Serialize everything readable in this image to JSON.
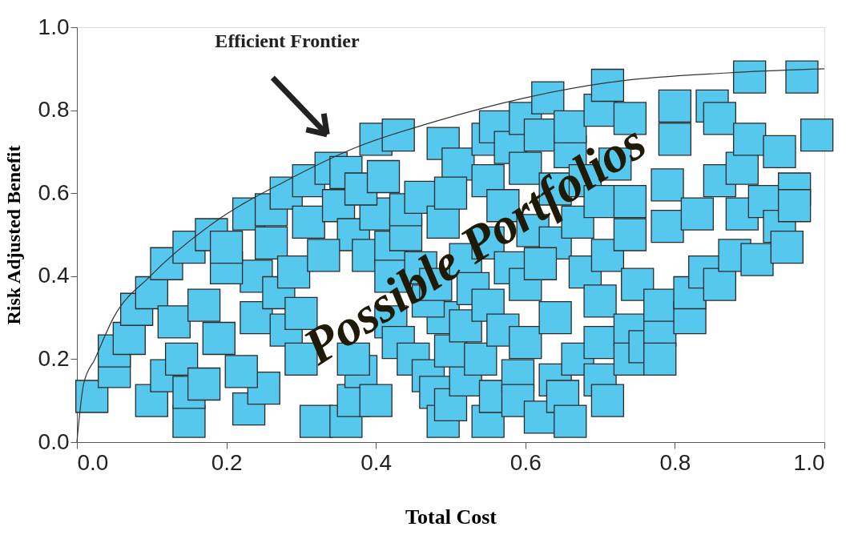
{
  "chart_data": {
    "type": "scatter",
    "xlabel": "Total Cost",
    "ylabel": "Risk Adjusted Benefit",
    "xlim": [
      0,
      1
    ],
    "ylim": [
      0,
      1
    ],
    "xticks": [
      {
        "value": 0,
        "label": "0.0"
      },
      0.2,
      0.4,
      0.6,
      0.8,
      {
        "value": 1,
        "label": "1.0"
      }
    ],
    "yticks": [
      {
        "value": 0,
        "label": "0.0"
      },
      0.2,
      0.4,
      0.6,
      0.8,
      {
        "value": 1,
        "label": "1.0"
      }
    ],
    "grid": false,
    "annotations": [
      "Efficient Frontier",
      "Possible Portfolios"
    ],
    "series": [
      {
        "type": "scatter",
        "color": "#56c8ee",
        "marker": "square",
        "x": [
          0.02,
          0.05,
          0.05,
          0.07,
          0.1,
          0.08,
          0.1,
          0.12,
          0.14,
          0.15,
          0.15,
          0.13,
          0.17,
          0.17,
          0.19,
          0.12,
          0.15,
          0.18,
          0.23,
          0.23,
          0.25,
          0.22,
          0.24,
          0.24,
          0.2,
          0.2,
          0.26,
          0.27,
          0.29,
          0.28,
          0.3,
          0.3,
          0.26,
          0.28,
          0.31,
          0.31,
          0.34,
          0.36,
          0.35,
          0.37,
          0.33,
          0.32,
          0.36,
          0.37,
          0.38,
          0.4,
          0.37,
          0.39,
          0.4,
          0.38,
          0.41,
          0.4,
          0.43,
          0.42,
          0.44,
          0.44,
          0.42,
          0.46,
          0.46,
          0.42,
          0.43,
          0.45,
          0.47,
          0.48,
          0.49,
          0.5,
          0.52,
          0.5,
          0.49,
          0.47,
          0.48,
          0.49,
          0.49,
          0.51,
          0.5,
          0.52,
          0.53,
          0.52,
          0.55,
          0.54,
          0.56,
          0.55,
          0.55,
          0.55,
          0.55,
          0.56,
          0.58,
          0.57,
          0.58,
          0.57,
          0.59,
          0.59,
          0.6,
          0.6,
          0.61,
          0.6,
          0.6,
          0.62,
          0.63,
          0.64,
          0.64,
          0.62,
          0.64,
          0.64,
          0.62,
          0.65,
          0.66,
          0.67,
          0.67,
          0.66,
          0.66,
          0.68,
          0.68,
          0.7,
          0.7,
          0.7,
          0.71,
          0.71,
          0.7,
          0.7,
          0.71,
          0.74,
          0.74,
          0.72,
          0.74,
          0.75,
          0.74,
          0.74,
          0.76,
          0.78,
          0.78,
          0.78,
          0.79,
          0.79,
          0.8,
          0.8,
          0.82,
          0.82,
          0.84,
          0.83,
          0.85,
          0.86,
          0.86,
          0.86,
          0.88,
          0.89,
          0.89,
          0.9,
          0.9,
          0.91,
          0.92,
          0.94,
          0.95,
          0.94,
          0.96,
          0.96,
          0.97,
          0.99
        ],
        "values": [
          0.11,
          0.17,
          0.22,
          0.25,
          0.1,
          0.32,
          0.36,
          0.16,
          0.2,
          0.05,
          0.12,
          0.29,
          0.33,
          0.14,
          0.25,
          0.43,
          0.47,
          0.5,
          0.55,
          0.08,
          0.13,
          0.17,
          0.3,
          0.4,
          0.42,
          0.47,
          0.48,
          0.36,
          0.41,
          0.27,
          0.31,
          0.2,
          0.56,
          0.6,
          0.53,
          0.63,
          0.66,
          0.65,
          0.57,
          0.5,
          0.45,
          0.05,
          0.05,
          0.1,
          0.17,
          0.1,
          0.2,
          0.45,
          0.55,
          0.61,
          0.64,
          0.73,
          0.74,
          0.47,
          0.5,
          0.56,
          0.4,
          0.59,
          0.42,
          0.29,
          0.24,
          0.2,
          0.16,
          0.12,
          0.05,
          0.09,
          0.15,
          0.22,
          0.3,
          0.34,
          0.38,
          0.53,
          0.72,
          0.67,
          0.6,
          0.44,
          0.37,
          0.28,
          0.05,
          0.2,
          0.11,
          0.33,
          0.48,
          0.63,
          0.73,
          0.76,
          0.71,
          0.57,
          0.42,
          0.27,
          0.16,
          0.1,
          0.24,
          0.38,
          0.51,
          0.66,
          0.78,
          0.74,
          0.83,
          0.61,
          0.48,
          0.43,
          0.3,
          0.15,
          0.06,
          0.11,
          0.05,
          0.2,
          0.53,
          0.7,
          0.76,
          0.63,
          0.41,
          0.34,
          0.15,
          0.24,
          0.1,
          0.45,
          0.58,
          0.8,
          0.86,
          0.78,
          0.58,
          0.67,
          0.5,
          0.38,
          0.27,
          0.2,
          0.23,
          0.27,
          0.2,
          0.33,
          0.52,
          0.62,
          0.73,
          0.81,
          0.3,
          0.36,
          0.41,
          0.55,
          0.81,
          0.78,
          0.63,
          0.38,
          0.45,
          0.55,
          0.66,
          0.88,
          0.73,
          0.44,
          0.58,
          0.52,
          0.47,
          0.7,
          0.61,
          0.57,
          0.88,
          0.74
        ]
      },
      {
        "type": "line",
        "color": "#333333",
        "x": [
          0,
          0.009,
          0.024,
          0.049,
          0.098,
          0.184,
          0.28,
          0.373,
          0.474,
          0.6,
          0.725,
          0.871,
          1.0
        ],
        "values": [
          0,
          0.14,
          0.2,
          0.3,
          0.4,
          0.53,
          0.63,
          0.71,
          0.77,
          0.83,
          0.87,
          0.89,
          0.9
        ]
      }
    ]
  }
}
